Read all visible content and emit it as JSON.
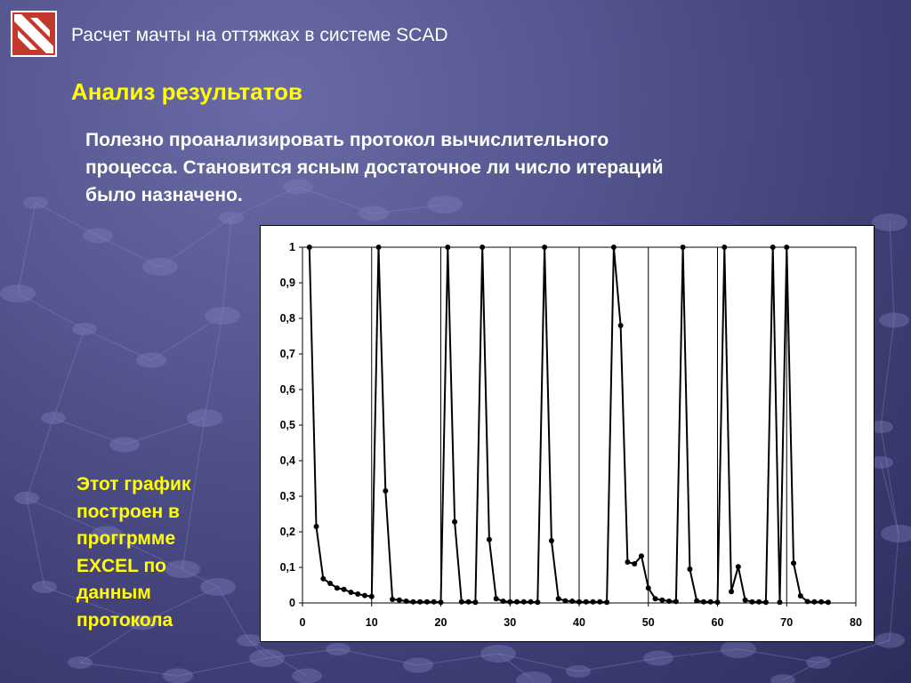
{
  "header": {
    "title": "Расчет мачты на оттяжках в системе  SCAD"
  },
  "slide": {
    "heading": "Анализ результатов",
    "body_lines": [
      "Полезно проанализировать протокол вычислительного",
      "процесса. Становится ясным достаточное ли число итераций",
      "было назначено."
    ],
    "note_lines": [
      "Этот график",
      "построен в",
      "проггрмме",
      "EXCEL по",
      "данным",
      "протокола"
    ]
  },
  "logo": {
    "icon": "scad-logo-icon",
    "colors": {
      "background": "#c0392b",
      "stripe": "#ffffff",
      "border": "#ffffff"
    }
  },
  "colors": {
    "heading": "#ffff00",
    "text": "#ffffff",
    "note": "#ffff00",
    "line": "#000000"
  },
  "chart_data": {
    "type": "line",
    "title": "",
    "xlabel": "",
    "ylabel": "",
    "xlim": [
      0,
      80
    ],
    "ylim": [
      0,
      1
    ],
    "x_ticks": [
      0,
      10,
      20,
      30,
      40,
      50,
      60,
      70,
      80
    ],
    "x_tick_labels": [
      "0",
      "10",
      "20",
      "30",
      "40",
      "50",
      "60",
      "70",
      "80"
    ],
    "y_ticks": [
      0,
      0.1,
      0.2,
      0.3,
      0.4,
      0.5,
      0.6,
      0.7,
      0.8,
      0.9,
      1
    ],
    "y_tick_labels": [
      "0",
      "0,1",
      "0,2",
      "0,3",
      "0,4",
      "0,5",
      "0,6",
      "0,7",
      "0,8",
      "0,9",
      "1"
    ],
    "grid": "vertical",
    "legend": "none",
    "markers": "circle",
    "series": [
      {
        "x": [
          1,
          2,
          3,
          4,
          5,
          6,
          7,
          8,
          9,
          10,
          11,
          12,
          13,
          14,
          15,
          16,
          17,
          18,
          19,
          20,
          21,
          22,
          23,
          24,
          25,
          26,
          27,
          28,
          29,
          30,
          31,
          32,
          33,
          34,
          35,
          36,
          37,
          38,
          39,
          40,
          41,
          42,
          43,
          44,
          45,
          46,
          47,
          48,
          49,
          50,
          51,
          52,
          53,
          54,
          55,
          56,
          57,
          58,
          59,
          60,
          61,
          62,
          63,
          64,
          65,
          66,
          67,
          68,
          69,
          70,
          71,
          72,
          73,
          74,
          75,
          76
        ],
        "values": [
          1,
          0.215,
          0.068,
          0.055,
          0.042,
          0.038,
          0.03,
          0.025,
          0.021,
          0.018,
          1,
          0.315,
          0.01,
          0.008,
          0.005,
          0.003,
          0.003,
          0.003,
          0.003,
          0.002,
          1,
          0.228,
          0.003,
          0.003,
          0.002,
          1,
          0.178,
          0.012,
          0.005,
          0.003,
          0.003,
          0.003,
          0.003,
          0.002,
          1,
          0.175,
          0.012,
          0.006,
          0.005,
          0.003,
          0.003,
          0.003,
          0.003,
          0.002,
          1,
          0.78,
          0.115,
          0.11,
          0.132,
          0.042,
          0.012,
          0.008,
          0.005,
          0.004,
          1,
          0.095,
          0.006,
          0.003,
          0.003,
          0.002,
          1,
          0.032,
          0.102,
          0.008,
          0.003,
          0.003,
          0.002,
          1,
          0.002,
          1,
          0.112,
          0.02,
          0.004,
          0.003,
          0.003,
          0.002
        ]
      }
    ]
  }
}
